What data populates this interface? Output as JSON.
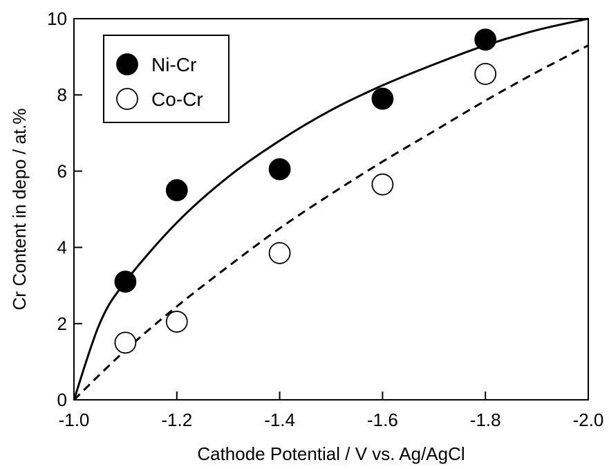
{
  "chart_data": {
    "type": "scatter",
    "xlabel": "Cathode Potential / V vs. Ag/AgCl",
    "ylabel": "Cr Content in depo / at.%",
    "xlim": [
      -1.0,
      -2.0
    ],
    "ylim": [
      0,
      10
    ],
    "x_reversed": true,
    "x_ticks": [
      -1.0,
      -1.2,
      -1.4,
      -1.6,
      -1.8,
      -2.0
    ],
    "x_tick_labels": [
      "-1.0",
      "-1.2",
      "-1.4",
      "-1.6",
      "-1.8",
      "-2.0"
    ],
    "y_ticks": [
      0,
      2,
      4,
      6,
      8,
      10
    ],
    "y_tick_labels": [
      "0",
      "2",
      "4",
      "6",
      "8",
      "10"
    ],
    "grid": false,
    "legend_position": "top-left",
    "series": [
      {
        "name": "Ni-Cr",
        "marker": "filled-circle",
        "color": "#000000",
        "x": [
          -1.1,
          -1.2,
          -1.4,
          -1.6,
          -1.8
        ],
        "y": [
          3.1,
          5.5,
          6.05,
          7.9,
          9.45
        ],
        "fit_line": {
          "style": "solid",
          "x": [
            -1.0,
            -1.05,
            -1.1,
            -1.2,
            -1.3,
            -1.4,
            -1.5,
            -1.6,
            -1.7,
            -1.8,
            -1.9,
            -2.0
          ],
          "y": [
            0.0,
            2.0,
            3.1,
            4.65,
            5.85,
            6.8,
            7.6,
            8.25,
            8.8,
            9.3,
            9.7,
            10.0
          ]
        }
      },
      {
        "name": "Co-Cr",
        "marker": "open-circle",
        "color": "#000000",
        "x": [
          -1.1,
          -1.2,
          -1.4,
          -1.6,
          -1.8
        ],
        "y": [
          1.5,
          2.05,
          3.85,
          5.65,
          8.55
        ],
        "fit_line": {
          "style": "dashed",
          "x": [
            -1.0,
            -1.1,
            -1.2,
            -1.3,
            -1.4,
            -1.5,
            -1.6,
            -1.7,
            -1.8,
            -1.9,
            -2.0
          ],
          "y": [
            0.0,
            1.3,
            2.45,
            3.5,
            4.5,
            5.4,
            6.25,
            7.05,
            7.85,
            8.6,
            9.3
          ]
        }
      }
    ]
  }
}
